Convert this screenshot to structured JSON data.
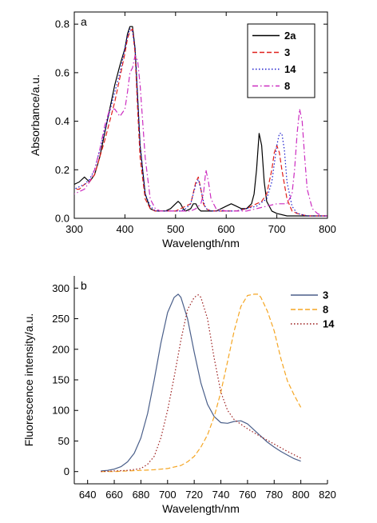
{
  "chart_data": [
    {
      "type": "line",
      "panel_label": "a",
      "xlabel": "Wavelength/nm",
      "ylabel": "Absorbance/a.u.",
      "xlim": [
        300,
        800
      ],
      "ylim": [
        0.0,
        0.85
      ],
      "xticks": [
        300,
        400,
        500,
        600,
        700,
        800
      ],
      "yticks": [
        0.0,
        0.2,
        0.4,
        0.6,
        0.8
      ],
      "xtick_labels": [
        "300",
        "400",
        "500",
        "600",
        "700",
        "800"
      ],
      "ytick_labels": [
        "0.0",
        "0.2",
        "0.4",
        "0.6",
        "0.8"
      ],
      "grid": false,
      "legend_position": "top-right",
      "series": [
        {
          "name": "2a",
          "color": "#000000",
          "dash": "solid",
          "x": [
            290,
            300,
            310,
            320,
            330,
            340,
            350,
            360,
            370,
            380,
            390,
            400,
            405,
            410,
            415,
            420,
            425,
            430,
            440,
            450,
            460,
            470,
            480,
            490,
            500,
            505,
            510,
            515,
            520,
            530,
            535,
            540,
            545,
            550,
            560,
            570,
            580,
            590,
            600,
            610,
            620,
            630,
            640,
            650,
            655,
            660,
            665,
            670,
            675,
            680,
            690,
            700,
            720,
            740,
            760,
            780,
            800
          ],
          "y": [
            0.13,
            0.14,
            0.15,
            0.17,
            0.15,
            0.18,
            0.25,
            0.35,
            0.45,
            0.55,
            0.63,
            0.7,
            0.76,
            0.79,
            0.79,
            0.7,
            0.5,
            0.3,
            0.1,
            0.04,
            0.03,
            0.03,
            0.03,
            0.04,
            0.06,
            0.07,
            0.06,
            0.04,
            0.03,
            0.04,
            0.06,
            0.06,
            0.04,
            0.03,
            0.03,
            0.03,
            0.03,
            0.04,
            0.05,
            0.06,
            0.05,
            0.04,
            0.04,
            0.06,
            0.1,
            0.2,
            0.35,
            0.3,
            0.15,
            0.07,
            0.03,
            0.02,
            0.01,
            0.01,
            0.01,
            0.01,
            0.01
          ]
        },
        {
          "name": "3",
          "color": "#e0201c",
          "dash": "dash",
          "x": [
            290,
            300,
            310,
            320,
            330,
            340,
            350,
            360,
            370,
            380,
            390,
            400,
            405,
            410,
            415,
            420,
            425,
            430,
            440,
            450,
            460,
            470,
            480,
            490,
            500,
            510,
            520,
            530,
            540,
            545,
            550,
            555,
            560,
            570,
            580,
            600,
            620,
            640,
            660,
            670,
            680,
            690,
            695,
            700,
            705,
            710,
            720,
            730,
            740,
            760,
            780,
            800
          ],
          "y": [
            0.12,
            0.12,
            0.12,
            0.14,
            0.15,
            0.18,
            0.25,
            0.32,
            0.4,
            0.48,
            0.58,
            0.68,
            0.74,
            0.77,
            0.78,
            0.68,
            0.45,
            0.25,
            0.08,
            0.04,
            0.03,
            0.03,
            0.03,
            0.03,
            0.03,
            0.04,
            0.05,
            0.06,
            0.15,
            0.17,
            0.12,
            0.06,
            0.04,
            0.03,
            0.03,
            0.03,
            0.03,
            0.04,
            0.06,
            0.07,
            0.1,
            0.2,
            0.27,
            0.3,
            0.27,
            0.2,
            0.08,
            0.03,
            0.02,
            0.01,
            0.01,
            0.01
          ]
        },
        {
          "name": "14",
          "color": "#1a1acc",
          "dash": "dot",
          "x": [
            290,
            300,
            310,
            320,
            330,
            340,
            350,
            360,
            370,
            380,
            390,
            400,
            405,
            410,
            415,
            420,
            425,
            430,
            440,
            450,
            460,
            470,
            480,
            490,
            500,
            510,
            520,
            530,
            540,
            545,
            550,
            555,
            560,
            570,
            580,
            600,
            620,
            640,
            660,
            680,
            690,
            700,
            705,
            710,
            715,
            720,
            730,
            740,
            760,
            780,
            800
          ],
          "y": [
            0.12,
            0.12,
            0.13,
            0.14,
            0.16,
            0.2,
            0.28,
            0.36,
            0.44,
            0.52,
            0.6,
            0.7,
            0.75,
            0.78,
            0.77,
            0.7,
            0.5,
            0.3,
            0.1,
            0.05,
            0.03,
            0.03,
            0.03,
            0.03,
            0.03,
            0.03,
            0.04,
            0.06,
            0.14,
            0.16,
            0.12,
            0.07,
            0.04,
            0.03,
            0.03,
            0.03,
            0.03,
            0.04,
            0.05,
            0.08,
            0.15,
            0.3,
            0.35,
            0.35,
            0.28,
            0.15,
            0.05,
            0.02,
            0.01,
            0.01,
            0.01
          ]
        },
        {
          "name": "8",
          "color": "#cc2cc0",
          "dash": "dashdot",
          "x": [
            290,
            300,
            310,
            320,
            330,
            340,
            350,
            360,
            370,
            380,
            390,
            400,
            405,
            410,
            415,
            420,
            425,
            430,
            435,
            440,
            450,
            460,
            470,
            480,
            490,
            500,
            510,
            520,
            530,
            540,
            550,
            555,
            560,
            565,
            570,
            580,
            600,
            620,
            640,
            660,
            680,
            700,
            710,
            720,
            730,
            735,
            740,
            745,
            750,
            755,
            760,
            770,
            780,
            790,
            800
          ],
          "y": [
            0.1,
            0.1,
            0.11,
            0.12,
            0.15,
            0.2,
            0.28,
            0.38,
            0.45,
            0.45,
            0.42,
            0.45,
            0.52,
            0.6,
            0.62,
            0.67,
            0.65,
            0.55,
            0.4,
            0.25,
            0.08,
            0.04,
            0.03,
            0.03,
            0.03,
            0.03,
            0.03,
            0.03,
            0.03,
            0.04,
            0.06,
            0.1,
            0.2,
            0.15,
            0.08,
            0.04,
            0.03,
            0.03,
            0.03,
            0.04,
            0.05,
            0.06,
            0.06,
            0.06,
            0.1,
            0.2,
            0.35,
            0.45,
            0.4,
            0.25,
            0.12,
            0.04,
            0.02,
            0.01,
            0.01
          ]
        }
      ]
    },
    {
      "type": "line",
      "panel_label": "b",
      "xlabel": "Wavelength/nm",
      "ylabel": "Fluorescence intensity/a.u.",
      "xlim": [
        630,
        820
      ],
      "ylim": [
        -20,
        320
      ],
      "xticks": [
        640,
        660,
        680,
        700,
        720,
        740,
        760,
        780,
        800,
        820
      ],
      "yticks": [
        0,
        50,
        100,
        150,
        200,
        250,
        300
      ],
      "xtick_labels": [
        "640",
        "660",
        "680",
        "700",
        "720",
        "740",
        "760",
        "780",
        "800",
        "820"
      ],
      "ytick_labels": [
        "0",
        "50",
        "100",
        "150",
        "200",
        "250",
        "300"
      ],
      "grid": false,
      "legend_position": "top-right",
      "series": [
        {
          "name": "3",
          "color": "#4a5f8a",
          "dash": "solid",
          "x": [
            650,
            655,
            660,
            665,
            670,
            675,
            680,
            685,
            690,
            695,
            700,
            705,
            708,
            710,
            715,
            720,
            725,
            730,
            735,
            740,
            745,
            750,
            755,
            760,
            765,
            770,
            775,
            780,
            785,
            790,
            795,
            800
          ],
          "y": [
            1,
            2,
            4,
            8,
            16,
            30,
            55,
            95,
            150,
            210,
            260,
            285,
            290,
            285,
            250,
            195,
            145,
            110,
            90,
            80,
            79,
            82,
            83,
            78,
            68,
            58,
            48,
            40,
            33,
            27,
            21,
            17
          ]
        },
        {
          "name": "8",
          "color": "#f5a623",
          "dash": "dash",
          "x": [
            650,
            660,
            670,
            680,
            690,
            700,
            710,
            715,
            720,
            725,
            730,
            735,
            740,
            745,
            750,
            755,
            760,
            765,
            768,
            770,
            775,
            780,
            785,
            790,
            795,
            800
          ],
          "y": [
            0,
            0,
            1,
            2,
            3,
            5,
            10,
            16,
            25,
            40,
            60,
            90,
            130,
            180,
            230,
            270,
            288,
            290,
            290,
            285,
            262,
            230,
            185,
            148,
            125,
            105
          ]
        },
        {
          "name": "14",
          "color": "#9a1a1a",
          "dash": "dot",
          "x": [
            650,
            660,
            670,
            680,
            685,
            690,
            695,
            700,
            705,
            710,
            715,
            720,
            723,
            725,
            730,
            735,
            740,
            745,
            750,
            760,
            770,
            780,
            790,
            800
          ],
          "y": [
            0,
            1,
            2,
            5,
            12,
            25,
            55,
            100,
            155,
            215,
            265,
            285,
            289,
            285,
            250,
            185,
            130,
            100,
            85,
            70,
            57,
            45,
            33,
            22
          ]
        }
      ]
    }
  ]
}
